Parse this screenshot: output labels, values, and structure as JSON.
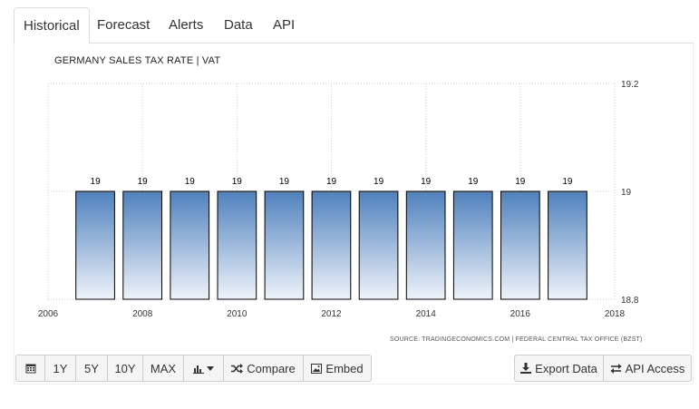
{
  "tabs": [
    {
      "label": "Historical",
      "active": true
    },
    {
      "label": "Forecast",
      "active": false
    },
    {
      "label": "Alerts",
      "active": false
    },
    {
      "label": "Data",
      "active": false
    },
    {
      "label": "API",
      "active": false
    }
  ],
  "chart_data": {
    "type": "bar",
    "title": "GERMANY SALES TAX RATE | VAT",
    "categories": [
      "2007",
      "2008",
      "2009",
      "2010",
      "2011",
      "2012",
      "2013",
      "2014",
      "2015",
      "2016",
      "2017"
    ],
    "values": [
      19,
      19,
      19,
      19,
      19,
      19,
      19,
      19,
      19,
      19,
      19
    ],
    "data_labels": [
      "19",
      "19",
      "19",
      "19",
      "19",
      "19",
      "19",
      "19",
      "19",
      "19",
      "19"
    ],
    "xlim": [
      2006,
      2018
    ],
    "x_ticks": [
      "2006",
      "2008",
      "2010",
      "2012",
      "2014",
      "2016",
      "2018"
    ],
    "ylim": [
      18.8,
      19.2
    ],
    "y_ticks": [
      "18.8",
      "19",
      "19.2"
    ],
    "y_axis_side": "right",
    "grid": true,
    "bar_color_top": "#4f81bd",
    "bar_color_bottom": "#eef3fa",
    "source": "SOURCE: TRADINGECONOMICS.COM | FEDERAL CENTRAL TAX OFFICE (BZST)"
  },
  "toolbar": {
    "calendar_icon": "calendar-icon",
    "ranges": [
      "1Y",
      "5Y",
      "10Y",
      "MAX"
    ],
    "chart_type_icon": "bar-chart-icon",
    "compare_label": "Compare",
    "embed_label": "Embed",
    "export_label": "Export Data",
    "api_label": "API Access"
  }
}
